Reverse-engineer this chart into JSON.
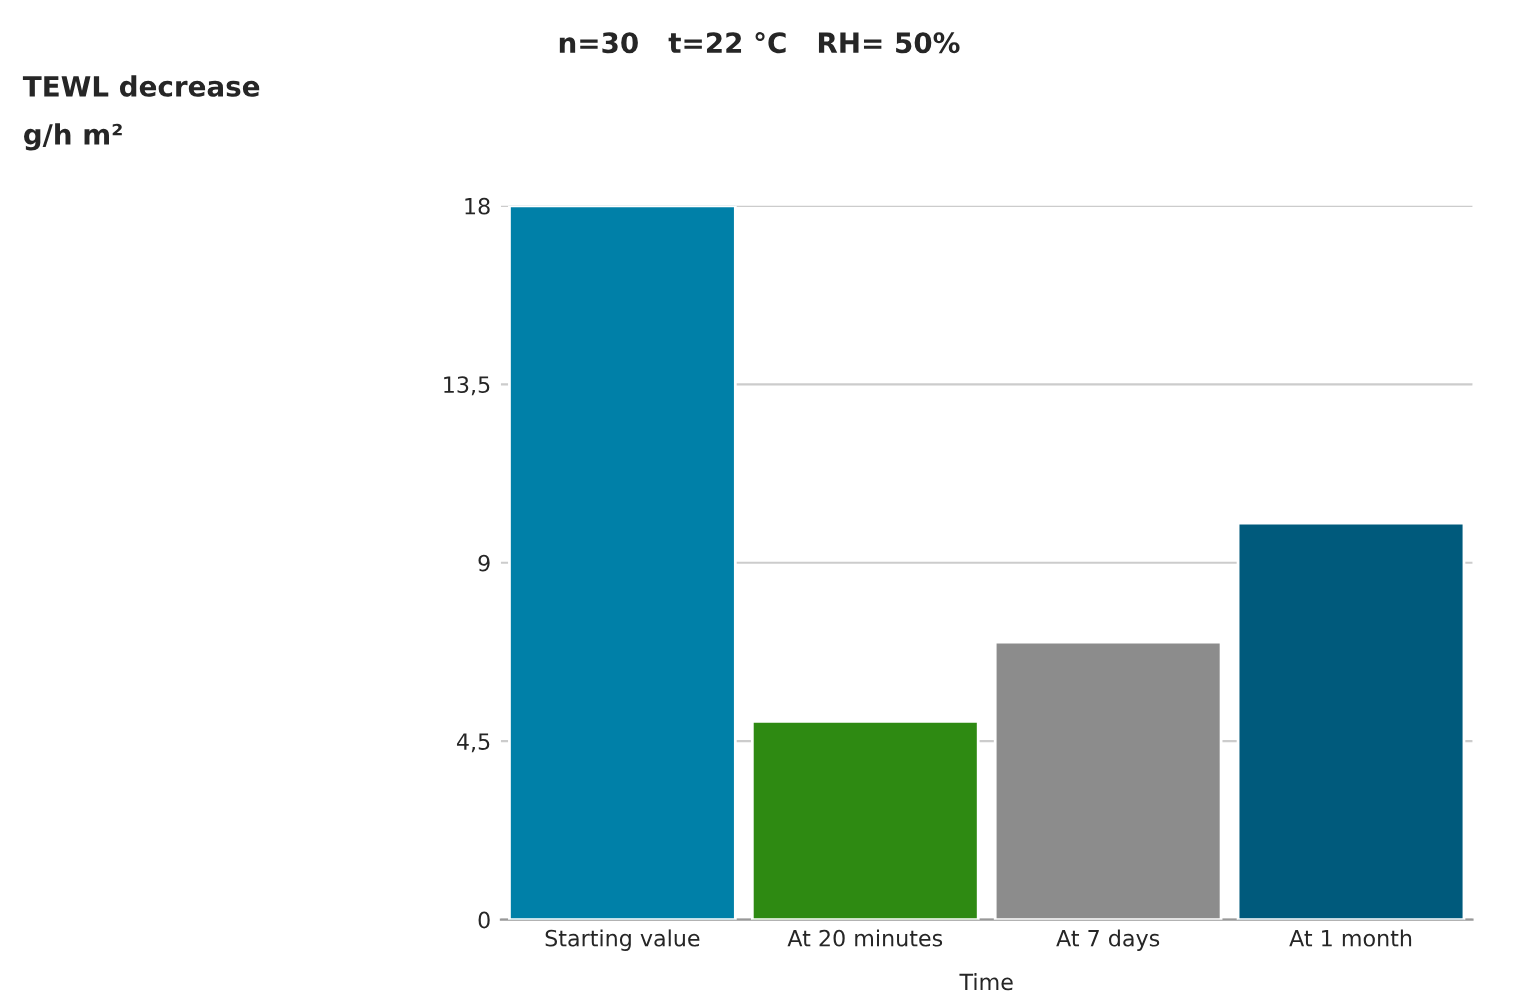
{
  "chart_data": {
    "type": "bar",
    "title": "n=30   t=22 °C   RH= 50%",
    "annotations": [
      "TEWL decrease\ng/h m²"
    ],
    "xlabel": "Time",
    "categories": [
      "Starting value",
      "At 20 minutes",
      "At 7 days",
      "At 1 month"
    ],
    "values": [
      18,
      5,
      7,
      10
    ],
    "colors": [
      "#0080a8",
      "#2e8a12",
      "#8c8c8c",
      "#005a7c"
    ],
    "ylim": [
      0,
      18
    ],
    "yticks": [
      0,
      {
        "value": 4.5,
        "label": "4,5"
      },
      9,
      {
        "value": 13.5,
        "label": "13,5"
      },
      18
    ],
    "grid": "y"
  }
}
